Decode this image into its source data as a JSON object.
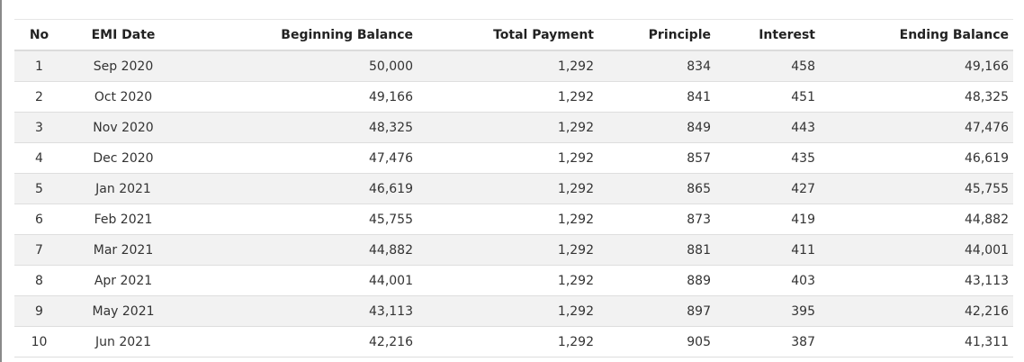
{
  "table": {
    "headers": [
      "No",
      "EMI Date",
      "Beginning Balance",
      "Total Payment",
      "Principle",
      "Interest",
      "Ending Balance"
    ],
    "rows": [
      [
        "1",
        "Sep 2020",
        "50,000",
        "1,292",
        "834",
        "458",
        "49,166"
      ],
      [
        "2",
        "Oct 2020",
        "49,166",
        "1,292",
        "841",
        "451",
        "48,325"
      ],
      [
        "3",
        "Nov 2020",
        "48,325",
        "1,292",
        "849",
        "443",
        "47,476"
      ],
      [
        "4",
        "Dec 2020",
        "47,476",
        "1,292",
        "857",
        "435",
        "46,619"
      ],
      [
        "5",
        "Jan 2021",
        "46,619",
        "1,292",
        "865",
        "427",
        "45,755"
      ],
      [
        "6",
        "Feb 2021",
        "45,755",
        "1,292",
        "873",
        "419",
        "44,882"
      ],
      [
        "7",
        "Mar 2021",
        "44,882",
        "1,292",
        "881",
        "411",
        "44,001"
      ],
      [
        "8",
        "Apr 2021",
        "44,001",
        "1,292",
        "889",
        "403",
        "43,113"
      ],
      [
        "9",
        "May 2021",
        "43,113",
        "1,292",
        "897",
        "395",
        "42,216"
      ],
      [
        "10",
        "Jun 2021",
        "42,216",
        "1,292",
        "905",
        "387",
        "41,311"
      ]
    ]
  }
}
